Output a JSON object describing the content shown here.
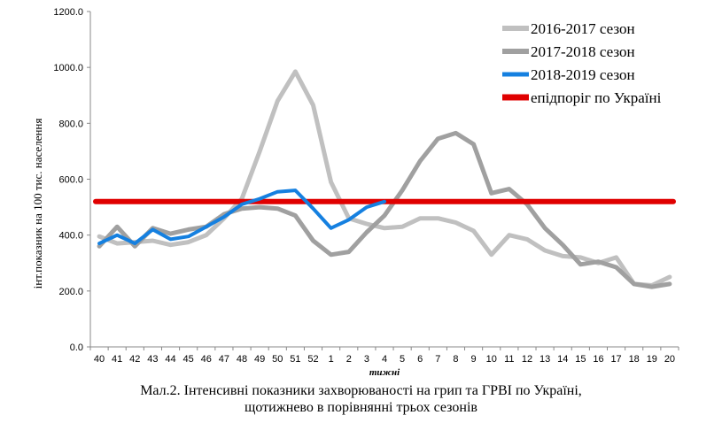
{
  "chart_data": {
    "type": "line",
    "xlabel": "тижні",
    "ylabel": "інт.показник на 100 тис. населення",
    "ylim": [
      0,
      1200
    ],
    "yticks": [
      "0.0",
      "200.0",
      "400.0",
      "600.0",
      "800.0",
      "1000.0",
      "1200.0"
    ],
    "categories": [
      "40",
      "41",
      "42",
      "43",
      "44",
      "45",
      "46",
      "47",
      "48",
      "49",
      "50",
      "51",
      "52",
      "1",
      "2",
      "3",
      "4",
      "5",
      "6",
      "7",
      "8",
      "9",
      "10",
      "11",
      "12",
      "13",
      "14",
      "15",
      "16",
      "17",
      "18",
      "19",
      "20"
    ],
    "legend_position": "top-right",
    "series": [
      {
        "name": "2016-2017 сезон",
        "color": "#c0c0c0",
        "values": [
          395,
          370,
          375,
          380,
          365,
          375,
          400,
          460,
          530,
          700,
          880,
          985,
          865,
          590,
          460,
          440,
          425,
          430,
          460,
          460,
          445,
          415,
          330,
          400,
          385,
          345,
          325,
          320,
          300,
          320,
          225,
          220,
          250
        ]
      },
      {
        "name": "2017-2018 сезон",
        "color": "#a0a0a0",
        "values": [
          360,
          430,
          360,
          425,
          405,
          420,
          430,
          475,
          495,
          500,
          495,
          470,
          380,
          330,
          340,
          410,
          470,
          560,
          665,
          745,
          765,
          725,
          550,
          565,
          510,
          425,
          365,
          295,
          305,
          285,
          225,
          215,
          225
        ]
      },
      {
        "name": "2018-2019 сезон",
        "color": "#1580e0",
        "values": [
          370,
          400,
          370,
          420,
          385,
          395,
          430,
          465,
          510,
          530,
          555,
          560,
          495,
          425,
          455,
          500,
          520,
          null,
          null,
          null,
          null,
          null,
          null,
          null,
          null,
          null,
          null,
          null,
          null,
          null,
          null,
          null,
          null
        ]
      },
      {
        "name": "епідпоріг по Україні",
        "color": "#e00000",
        "values": [
          520,
          520,
          520,
          520,
          520,
          520,
          520,
          520,
          520,
          520,
          520,
          520,
          520,
          520,
          520,
          520,
          520,
          520,
          520,
          520,
          520,
          520,
          520,
          520,
          520,
          520,
          520,
          520,
          520,
          520,
          520,
          520,
          520
        ]
      }
    ]
  },
  "caption": {
    "line1": "Мал.2. Інтенсивні показники захворюваності на грип та ГРВІ по Україні,",
    "line2": "щотижнево в порівнянні трьох сезонів"
  }
}
